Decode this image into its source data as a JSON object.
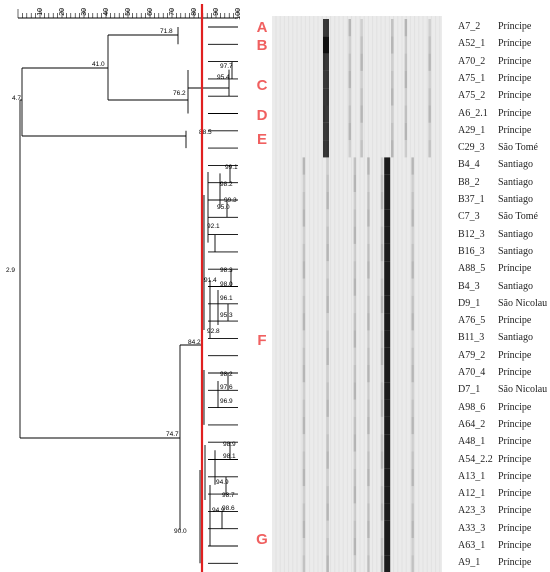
{
  "axis_ticks": [
    "10",
    "20",
    "30",
    "40",
    "50",
    "60",
    "70",
    "80",
    "90",
    "100"
  ],
  "cluster_letters": [
    "A",
    "B",
    "C",
    "D",
    "E",
    "F",
    "G"
  ],
  "node_labels": [
    "71.8",
    "41.0",
    "97.7",
    "95.4",
    "76.2",
    "4.7",
    "88.5",
    "99.1",
    "98.2",
    "99.3",
    "95.0",
    "92.1",
    "2.9",
    "98.3",
    "98.0",
    "91.4",
    "96.1",
    "95.3",
    "92.8",
    "84.2",
    "98.2",
    "97.6",
    "96.9",
    "74.7",
    "98.9",
    "98.1",
    "94.9",
    "98.7",
    "94.9",
    "98.6",
    "90.0"
  ],
  "strains": [
    {
      "id": "A7_2",
      "origin": "Príncipe"
    },
    {
      "id": "A52_1",
      "origin": "Príncipe"
    },
    {
      "id": "A70_2",
      "origin": "Príncipe"
    },
    {
      "id": "A75_1",
      "origin": "Príncipe"
    },
    {
      "id": "A75_2",
      "origin": "Príncipe"
    },
    {
      "id": "A6_2.1",
      "origin": "Príncipe"
    },
    {
      "id": "A29_1",
      "origin": "Príncipe"
    },
    {
      "id": "C29_3",
      "origin": "São Tomé"
    },
    {
      "id": "B4_4",
      "origin": "Santiago"
    },
    {
      "id": "B8_2",
      "origin": "Santiago"
    },
    {
      "id": "B37_1",
      "origin": "Santiago"
    },
    {
      "id": "C7_3",
      "origin": "São Tomé"
    },
    {
      "id": "B12_3",
      "origin": "Santiago"
    },
    {
      "id": "B16_3",
      "origin": "Santiago"
    },
    {
      "id": "A88_5",
      "origin": "Príncipe"
    },
    {
      "id": "B4_3",
      "origin": "Santiago"
    },
    {
      "id": "D9_1",
      "origin": "São Nicolau"
    },
    {
      "id": "A76_5",
      "origin": "Príncipe"
    },
    {
      "id": "B11_3",
      "origin": "Santiago"
    },
    {
      "id": "A79_2",
      "origin": "Príncipe"
    },
    {
      "id": "A70_4",
      "origin": "Príncipe"
    },
    {
      "id": "D7_1",
      "origin": "São Nicolau"
    },
    {
      "id": "A98_6",
      "origin": "Príncipe"
    },
    {
      "id": "A64_2",
      "origin": "Príncipe"
    },
    {
      "id": "A48_1",
      "origin": "Príncipe"
    },
    {
      "id": "A54_2.2",
      "origin": "Príncipe"
    },
    {
      "id": "A13_1",
      "origin": "Príncipe"
    },
    {
      "id": "A12_1",
      "origin": "Príncipe"
    },
    {
      "id": "A23_3",
      "origin": "Príncipe"
    },
    {
      "id": "A33_3",
      "origin": "Príncipe"
    },
    {
      "id": "A63_1",
      "origin": "Príncipe"
    },
    {
      "id": "A9_1",
      "origin": "Príncipe"
    }
  ],
  "colors": {
    "cutoff_line": "#e02020",
    "cluster_letter": "#f06060",
    "tree": "#000000",
    "gel_background": "#ebebeb",
    "band": "#111111"
  }
}
